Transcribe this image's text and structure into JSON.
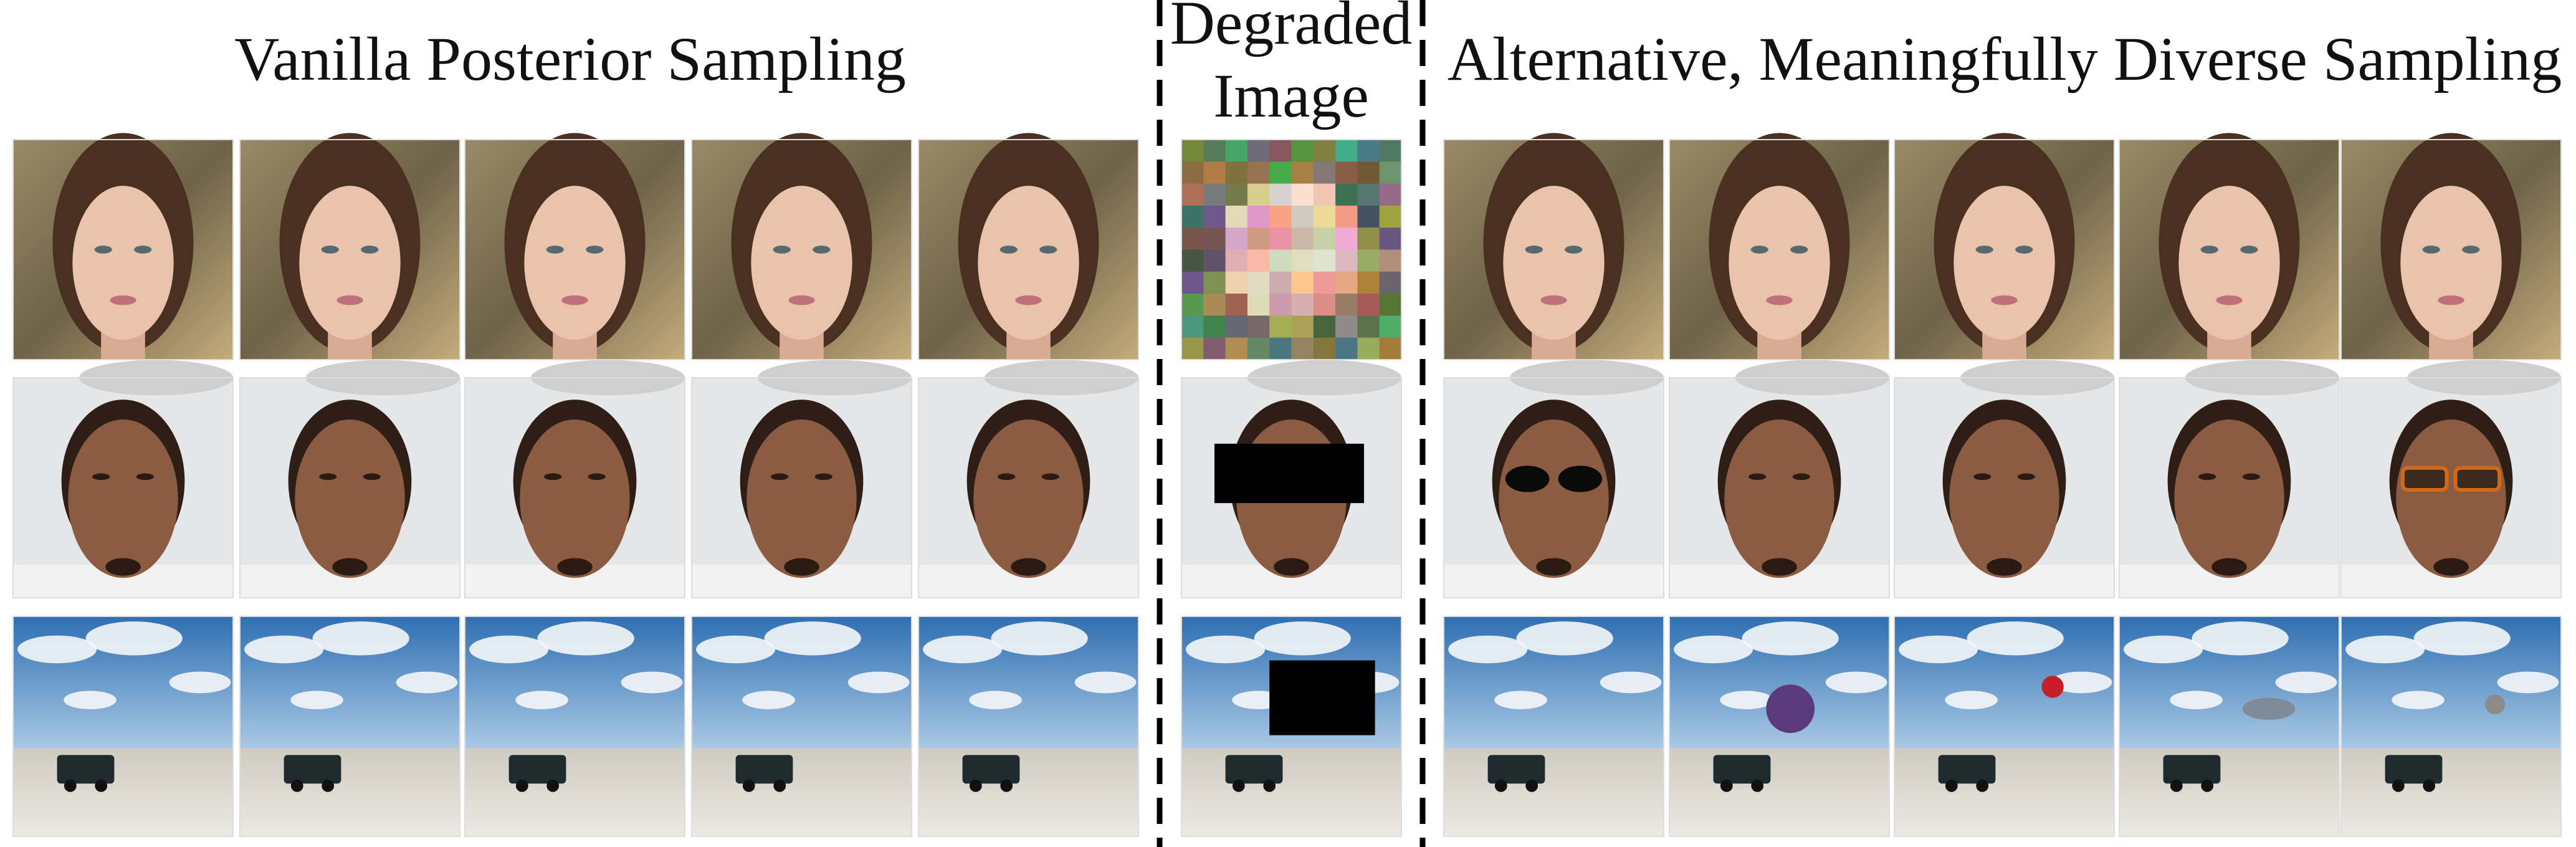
{
  "headers": {
    "left": "Vanilla Posterior Sampling",
    "middle_line1": "Degraded",
    "middle_line2": "Image",
    "right": "Alternative, Meaningfully Diverse Sampling"
  }
}
